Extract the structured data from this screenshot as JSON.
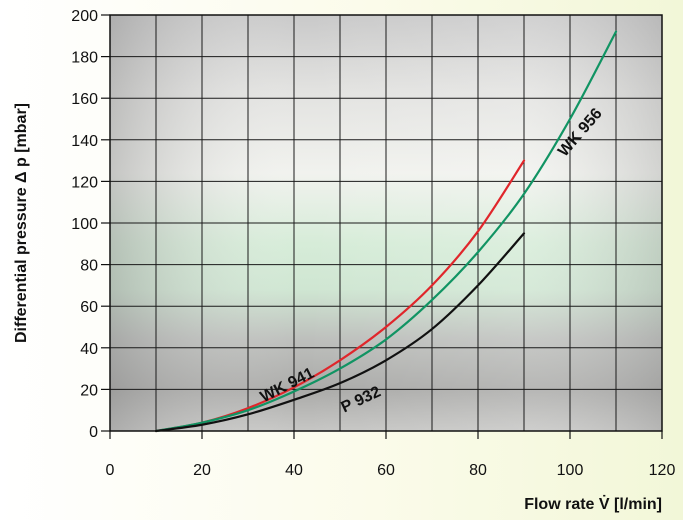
{
  "chart_data": {
    "type": "line",
    "xlabel": "Flow rate V̇ [l/min]",
    "ylabel": "Differential pressure Δ p [mbar]",
    "xlim": [
      0,
      120
    ],
    "ylim": [
      0,
      200
    ],
    "xticks": [
      0,
      20,
      40,
      60,
      80,
      100,
      120
    ],
    "yticks": [
      0,
      20,
      40,
      60,
      80,
      100,
      120,
      140,
      160,
      180,
      200
    ],
    "grid": true,
    "series": [
      {
        "name": "WK 941",
        "color": "#e0262b",
        "x": [
          10,
          20,
          30,
          40,
          50,
          60,
          70,
          80,
          90
        ],
        "y": [
          0,
          4,
          11,
          21,
          34,
          50,
          70,
          96,
          130
        ]
      },
      {
        "name": "WK 956",
        "color": "#119463",
        "x": [
          10,
          20,
          30,
          40,
          50,
          60,
          70,
          80,
          90,
          100,
          110
        ],
        "y": [
          0,
          4,
          10,
          19,
          30,
          44,
          63,
          86,
          114,
          150,
          192
        ]
      },
      {
        "name": "P 932",
        "color": "#111111",
        "x": [
          10,
          20,
          30,
          40,
          50,
          60,
          70,
          80,
          90
        ],
        "y": [
          0,
          3,
          8,
          15,
          23,
          34,
          49,
          70,
          95
        ]
      }
    ]
  }
}
